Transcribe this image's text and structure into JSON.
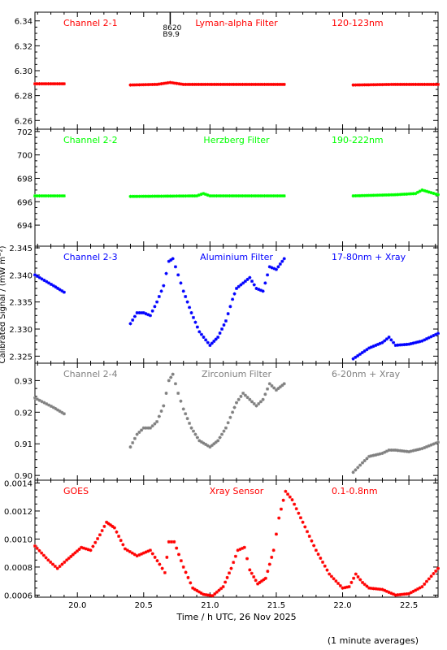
{
  "figure": {
    "xlabel": "Time / h UTC, 26 Nov 2025",
    "ylabel": "Calibrated Signal / (mW m⁻²)",
    "footnote": "(1 minute averages)",
    "marker_text": [
      "8620",
      "B9.9"
    ]
  },
  "chart_data": [
    {
      "type": "scatter",
      "channel": "Channel 2-1",
      "filter": "Lyman-alpha Filter",
      "band": "120-123nm",
      "color": "#ff0000",
      "xlim": [
        19.68,
        22.72
      ],
      "ylim": [
        6.253,
        6.347
      ],
      "yticks": [
        6.26,
        6.28,
        6.3,
        6.32,
        6.34
      ],
      "yticklabels": [
        "6.26",
        "6.28",
        "6.30",
        "6.32",
        "6.34"
      ],
      "segments": [
        {
          "x": [
            19.68,
            19.9
          ],
          "y": [
            6.2895,
            6.2895
          ]
        },
        {
          "x": [
            20.4,
            20.6,
            20.7,
            20.8,
            21.56
          ],
          "y": [
            6.2885,
            6.289,
            6.2905,
            6.289,
            6.289
          ]
        },
        {
          "x": [
            22.08,
            22.4,
            22.72
          ],
          "y": [
            6.2885,
            6.289,
            6.289
          ]
        }
      ]
    },
    {
      "type": "scatter",
      "channel": "Channel 2-2",
      "filter": "Herzberg Filter",
      "band": "190-222nm",
      "color": "#00ff00",
      "xlim": [
        19.68,
        22.72
      ],
      "ylim": [
        692.2,
        702.2
      ],
      "yticks": [
        694,
        696,
        698,
        700,
        702
      ],
      "yticklabels": [
        "694",
        "696",
        "698",
        "700",
        "702"
      ],
      "segments": [
        {
          "x": [
            19.68,
            19.9
          ],
          "y": [
            696.5,
            696.5
          ]
        },
        {
          "x": [
            20.4,
            20.9,
            20.95,
            21.0,
            21.56
          ],
          "y": [
            696.45,
            696.5,
            696.7,
            696.5,
            696.5
          ]
        },
        {
          "x": [
            22.08,
            22.4,
            22.55,
            22.6,
            22.72
          ],
          "y": [
            696.5,
            696.6,
            696.7,
            697.0,
            696.6
          ]
        }
      ]
    },
    {
      "type": "scatter",
      "channel": "Channel 2-3",
      "filter": "Aluminium Filter",
      "band": "17-80nm + Xray",
      "color": "#0000ff",
      "xlim": [
        19.68,
        22.72
      ],
      "ylim": [
        2.3237,
        2.3453
      ],
      "yticks": [
        2.325,
        2.33,
        2.335,
        2.34,
        2.345
      ],
      "yticklabels": [
        "2.325",
        "2.330",
        "2.335",
        "2.340",
        "2.345"
      ],
      "segments": [
        {
          "x": [
            19.68,
            19.75,
            19.82,
            19.9
          ],
          "y": [
            2.34,
            2.339,
            2.338,
            2.3368
          ]
        },
        {
          "x": [
            20.4,
            20.45,
            20.5,
            20.55,
            20.6,
            20.65,
            20.69,
            20.72,
            20.76,
            20.8,
            20.86,
            20.92,
            21.0,
            21.06,
            21.12,
            21.17,
            21.2,
            21.25,
            21.3,
            21.35,
            21.4,
            21.45,
            21.5,
            21.56
          ],
          "y": [
            2.331,
            2.333,
            2.333,
            2.3325,
            2.335,
            2.338,
            2.3425,
            2.343,
            2.34,
            2.337,
            2.333,
            2.3295,
            2.327,
            2.3285,
            2.3315,
            2.3355,
            2.3375,
            2.3385,
            2.3395,
            2.3375,
            2.337,
            2.3415,
            2.341,
            2.343
          ]
        },
        {
          "x": [
            22.08,
            22.2,
            22.3,
            22.35,
            22.4,
            22.5,
            22.6,
            22.72
          ],
          "y": [
            2.3245,
            2.3265,
            2.3275,
            2.3285,
            2.327,
            2.3272,
            2.3278,
            2.3292
          ]
        }
      ]
    },
    {
      "type": "scatter",
      "channel": "Channel 2-4",
      "filter": "Zirconium Filter",
      "band": "6-20nm + Xray",
      "color": "#808080",
      "xlim": [
        19.68,
        22.72
      ],
      "ylim": [
        0.8985,
        0.9355
      ],
      "yticks": [
        0.9,
        0.91,
        0.92,
        0.93
      ],
      "yticklabels": [
        "0.90",
        "0.91",
        "0.92",
        "0.93"
      ],
      "segments": [
        {
          "x": [
            19.68,
            19.75,
            19.82,
            19.9
          ],
          "y": [
            0.9245,
            0.923,
            0.9215,
            0.9195
          ]
        },
        {
          "x": [
            20.4,
            20.45,
            20.5,
            20.55,
            20.6,
            20.65,
            20.69,
            20.72,
            20.76,
            20.8,
            20.86,
            20.92,
            21.0,
            21.06,
            21.12,
            21.17,
            21.2,
            21.25,
            21.3,
            21.35,
            21.4,
            21.45,
            21.5,
            21.56
          ],
          "y": [
            0.909,
            0.913,
            0.915,
            0.915,
            0.917,
            0.922,
            0.93,
            0.932,
            0.926,
            0.921,
            0.915,
            0.911,
            0.909,
            0.911,
            0.915,
            0.92,
            0.923,
            0.926,
            0.924,
            0.922,
            0.924,
            0.929,
            0.927,
            0.929
          ]
        },
        {
          "x": [
            22.08,
            22.15,
            22.2,
            22.3,
            22.35,
            22.4,
            22.5,
            22.6,
            22.72
          ],
          "y": [
            0.901,
            0.904,
            0.906,
            0.907,
            0.908,
            0.908,
            0.9075,
            0.9085,
            0.9105
          ]
        }
      ]
    },
    {
      "type": "scatter",
      "channel": "GOES",
      "filter": "Xray Sensor",
      "band": "0.1-0.8nm",
      "color": "#ff0000",
      "xlim": [
        19.68,
        22.72
      ],
      "ylim": [
        0.000585,
        0.00142
      ],
      "yticks": [
        0.0006,
        0.0008,
        0.001,
        0.0012,
        0.0014
      ],
      "yticklabels": [
        "0.0006",
        "0.0008",
        "0.0010",
        "0.0012",
        "0.0014"
      ],
      "segments": [
        {
          "x": [
            19.68,
            19.78,
            19.85,
            19.92,
            20.03,
            20.1,
            20.17,
            20.22,
            20.28,
            20.36,
            20.45,
            20.55,
            20.62,
            20.66,
            20.69,
            20.73,
            20.8,
            20.87,
            20.95,
            21.02,
            21.1,
            21.16,
            21.21,
            21.26,
            21.3,
            21.36,
            21.42,
            21.48,
            21.52,
            21.57,
            21.62,
            21.7,
            21.8,
            21.9,
            22.0,
            22.05,
            22.1,
            22.15,
            22.2,
            22.3,
            22.4,
            22.5,
            22.6,
            22.72
          ],
          "y": [
            0.00095,
            0.00085,
            0.00079,
            0.00085,
            0.00094,
            0.00092,
            0.00103,
            0.00112,
            0.00108,
            0.00093,
            0.00088,
            0.00092,
            0.00082,
            0.00076,
            0.00098,
            0.00098,
            0.0008,
            0.00065,
            0.000605,
            0.000595,
            0.00066,
            0.00079,
            0.00092,
            0.00094,
            0.00078,
            0.00068,
            0.00072,
            0.00092,
            0.00115,
            0.00134,
            0.00128,
            0.00112,
            0.00092,
            0.00075,
            0.00065,
            0.00066,
            0.00075,
            0.00069,
            0.00065,
            0.00064,
            0.0006,
            0.00061,
            0.00066,
            0.00079
          ]
        }
      ]
    }
  ],
  "xaxis": {
    "ticks": [
      20.0,
      20.5,
      21.0,
      21.5,
      22.0,
      22.5
    ],
    "ticklabels": [
      "20.0",
      "20.5",
      "21.0",
      "21.5",
      "22.0",
      "22.5"
    ],
    "minor_step": 0.1,
    "marker_x": 20.7
  }
}
